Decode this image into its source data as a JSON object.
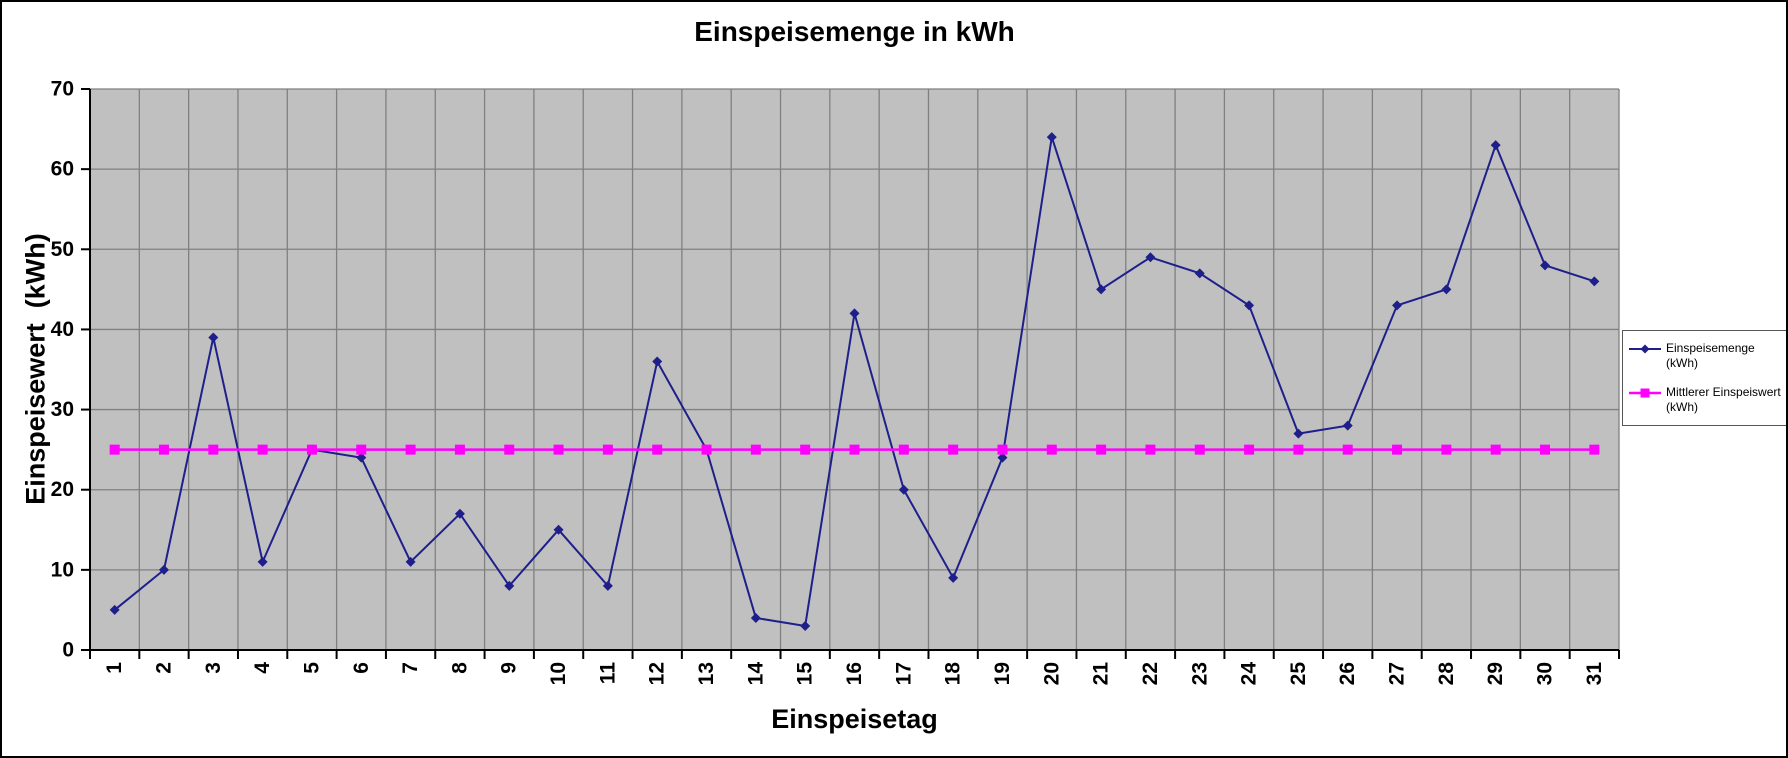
{
  "chart": {
    "title": "Einspeisemenge in kWh",
    "x_axis_title": "Einspeisetag",
    "y_axis_title": "Einspeisewert  (kWh)",
    "legend": {
      "series1_label": "Einspeisemenge\n(kWh)",
      "series2_label": "Mittlerer Einspeiswert\n(kWh)"
    },
    "colors": {
      "series1": "#1f1f8c",
      "series2": "#ff00ff",
      "plot_bg": "#c0c0c0",
      "gridline": "#808080",
      "axis": "#000000",
      "legend_border": "#555555"
    }
  },
  "chart_data": {
    "type": "line",
    "title": "Einspeisemenge in kWh",
    "xlabel": "Einspeisetag",
    "ylabel": "Einspeisewert (kWh)",
    "categories": [
      1,
      2,
      3,
      4,
      5,
      6,
      7,
      8,
      9,
      10,
      11,
      12,
      13,
      14,
      15,
      16,
      17,
      18,
      19,
      20,
      21,
      22,
      23,
      24,
      25,
      26,
      27,
      28,
      29,
      30,
      31
    ],
    "series": [
      {
        "name": "Einspeisemenge (kWh)",
        "marker": "diamond",
        "color": "#1f1f8c",
        "values": [
          5,
          10,
          39,
          11,
          25,
          24,
          11,
          17,
          8,
          15,
          8,
          36,
          25,
          4,
          3,
          42,
          20,
          9,
          24,
          64,
          45,
          49,
          47,
          43,
          27,
          28,
          43,
          45,
          63,
          48,
          46
        ]
      },
      {
        "name": "Mittlerer Einspeiswert (kWh)",
        "marker": "square",
        "color": "#ff00ff",
        "values": [
          25,
          25,
          25,
          25,
          25,
          25,
          25,
          25,
          25,
          25,
          25,
          25,
          25,
          25,
          25,
          25,
          25,
          25,
          25,
          25,
          25,
          25,
          25,
          25,
          25,
          25,
          25,
          25,
          25,
          25,
          25
        ]
      }
    ],
    "ylim": [
      0,
      70
    ],
    "y_ticks": [
      0,
      10,
      20,
      30,
      40,
      50,
      60,
      70
    ],
    "grid": true,
    "legend_position": "right",
    "plot_background": "gray"
  }
}
